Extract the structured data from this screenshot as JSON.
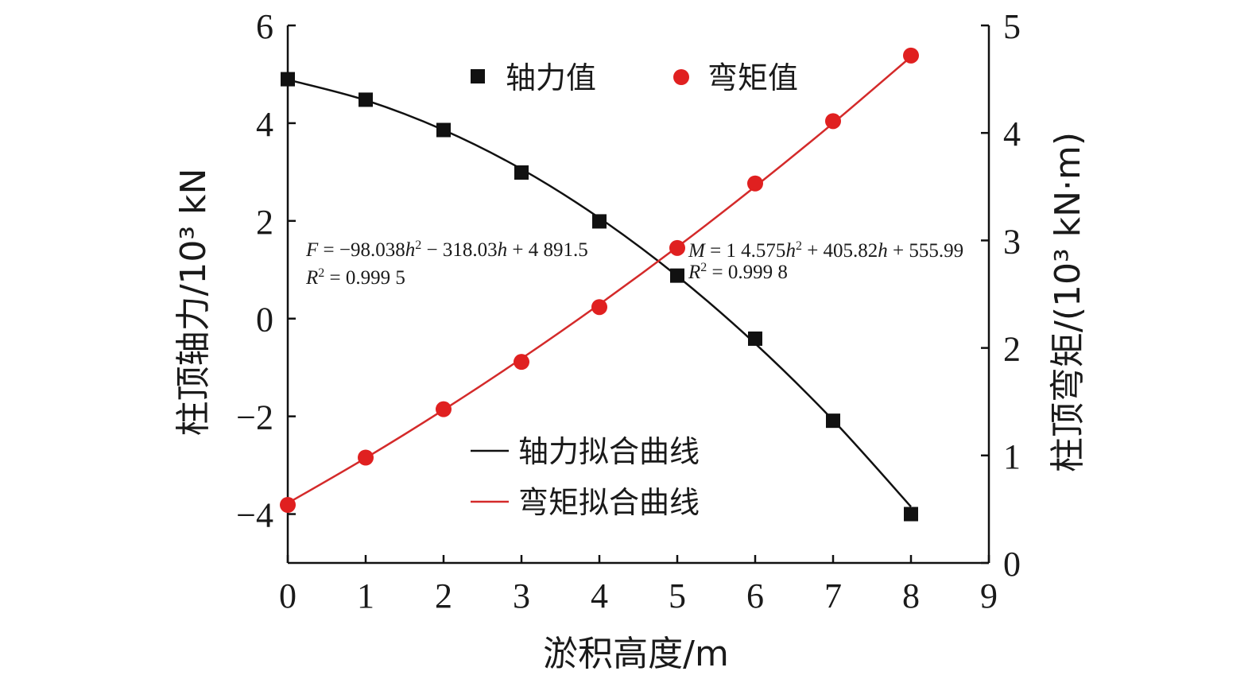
{
  "chart_data": {
    "type": "line",
    "x": [
      0,
      1,
      2,
      3,
      4,
      5,
      6,
      7,
      8
    ],
    "xlabel": "淤积高度/m",
    "ylabel_left": "柱顶轴力/10³ kN",
    "ylabel_right": "柱顶弯矩/(10³ kN·m)",
    "xlim": [
      0,
      9
    ],
    "ylim_left": [
      -5,
      6
    ],
    "ylim_right": [
      0,
      5
    ],
    "x_ticks": [
      "0",
      "1",
      "2",
      "3",
      "4",
      "5",
      "6",
      "7",
      "8",
      "9"
    ],
    "y_left_ticks": [
      {
        "value": 6,
        "label": "6"
      },
      {
        "value": 4,
        "label": "4"
      },
      {
        "value": 2,
        "label": "2"
      },
      {
        "value": 0,
        "label": "0"
      },
      {
        "value": -2,
        "label": "−2"
      },
      {
        "value": -4,
        "label": "−4"
      }
    ],
    "y_right_ticks": [
      {
        "value": 5,
        "label": "5"
      },
      {
        "value": 4,
        "label": "4"
      },
      {
        "value": 3,
        "label": "3"
      },
      {
        "value": 2,
        "label": "2"
      },
      {
        "value": 1,
        "label": "1"
      },
      {
        "value": 0,
        "label": "0"
      }
    ],
    "grid": false,
    "series": [
      {
        "name": "轴力值",
        "kind": "scatter",
        "axis": "left",
        "marker": "square",
        "color": "#111111",
        "values": [
          4.9,
          4.48,
          3.86,
          2.99,
          1.99,
          0.88,
          -0.41,
          -2.09,
          -4.0
        ]
      },
      {
        "name": "弯矩值",
        "kind": "scatter",
        "axis": "right",
        "marker": "circle",
        "color": "#e02020",
        "values": [
          0.54,
          0.98,
          1.43,
          1.87,
          2.38,
          2.93,
          3.53,
          4.11,
          4.72
        ]
      },
      {
        "name": "轴力拟合曲线",
        "kind": "line",
        "axis": "left",
        "color": "#111111",
        "values": [
          4.89,
          4.47,
          3.86,
          3.06,
          2.06,
          0.87,
          -0.51,
          -2.08,
          -3.85
        ]
      },
      {
        "name": "弯矩拟合曲线",
        "kind": "line",
        "axis": "right",
        "color": "#d42a2a",
        "values": [
          0.556,
          0.976,
          1.424,
          1.901,
          2.406,
          2.939,
          3.501,
          4.091,
          4.709
        ]
      }
    ],
    "legend": {
      "top": [
        {
          "label": "轴力值",
          "marker": "square",
          "color": "#111111"
        },
        {
          "label": "弯矩值",
          "marker": "circle",
          "color": "#e02020"
        }
      ],
      "bottom": [
        {
          "label": "轴力拟合曲线",
          "color": "#111111"
        },
        {
          "label": "弯矩拟合曲线",
          "color": "#d42a2a"
        }
      ]
    },
    "annotations": {
      "force_eq": {
        "var": "F",
        "rhs_1": " = −98.038",
        "v1": "h",
        "sup1": "2",
        "rhs_2": " − 318.03",
        "v2": "h",
        "rhs_3": " + 4 891.5"
      },
      "force_r2": {
        "var": "R",
        "sup": "2",
        "rhs": " = 0.999 5"
      },
      "moment_eq": {
        "var": "M",
        "rhs_1": " = 1 4.575",
        "v1": "h",
        "sup1": "2",
        "rhs_2": " + 405.82",
        "v2": "h",
        "rhs_3": " + 555.99"
      },
      "moment_r2": {
        "var": "R",
        "sup": "2",
        "rhs": " = 0.999 8"
      }
    }
  }
}
